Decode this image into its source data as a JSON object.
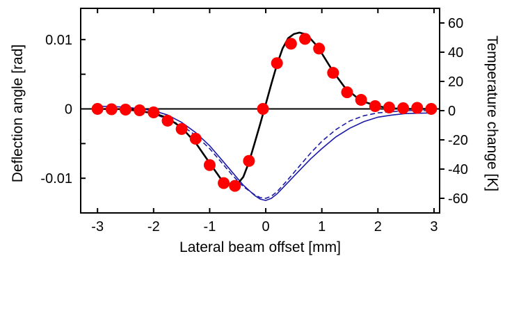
{
  "chart_data": {
    "type": "scatter",
    "title": "",
    "xlabel": "Lateral beam offset [mm]",
    "ylabel_left": "Deflection angle [rad]",
    "ylabel_right": "Temperature change [K]",
    "xlim": [
      -3.3,
      3.1
    ],
    "ylim_left": [
      -0.015,
      0.0145
    ],
    "ylim_right": [
      -70,
      70
    ],
    "x_ticks": [
      -3,
      -2,
      -1,
      0,
      1,
      2,
      3
    ],
    "x_tick_labels": [
      "-3",
      "-2",
      "-1",
      "0",
      "1",
      "2",
      "3"
    ],
    "y_left_ticks": [
      -0.01,
      0,
      0.01
    ],
    "y_left_tick_labels": [
      "-0.01",
      "0",
      "0.01"
    ],
    "y_right_ticks": [
      -60,
      -40,
      -20,
      0,
      20,
      40,
      60
    ],
    "y_right_tick_labels": [
      "-60",
      "-40",
      "-20",
      "0",
      "20",
      "40",
      "60"
    ],
    "grid": false,
    "legend": false,
    "colors": {
      "measured": "#ff0000",
      "fit": "#000000",
      "temperature": "#1a1aa6"
    },
    "series": [
      {
        "style": "red-circles",
        "axis": "left",
        "x": [
          -3.0,
          -2.75,
          -2.5,
          -2.25,
          -2.0,
          -1.75,
          -1.5,
          -1.25,
          -1.0,
          -0.75,
          -0.55,
          -0.3,
          -0.05,
          0.2,
          0.45,
          0.7,
          0.95,
          1.2,
          1.45,
          1.7,
          1.95,
          2.2,
          2.45,
          2.7,
          2.95
        ],
        "y": [
          0.0,
          -5e-05,
          -0.0001,
          -0.0002,
          -0.0005,
          -0.0017,
          -0.0029,
          -0.0043,
          -0.0081,
          -0.0107,
          -0.0111,
          -0.0075,
          0.0,
          0.0066,
          0.0094,
          0.0101,
          0.0087,
          0.0052,
          0.0024,
          0.0013,
          0.0004,
          0.0002,
          0.0001,
          0.00015,
          0.0
        ]
      },
      {
        "style": "black-line",
        "axis": "left",
        "x": [
          -3.0,
          -2.5,
          -2.0,
          -1.75,
          -1.5,
          -1.25,
          -1.0,
          -0.8,
          -0.6,
          -0.5,
          -0.4,
          -0.3,
          -0.2,
          -0.1,
          0.0,
          0.1,
          0.2,
          0.3,
          0.4,
          0.5,
          0.6,
          0.7,
          0.8,
          0.9,
          1.0,
          1.2,
          1.4,
          1.6,
          1.8,
          2.0,
          2.2,
          2.5,
          3.0
        ],
        "y": [
          0.0,
          -5e-05,
          -0.0006,
          -0.0013,
          -0.0027,
          -0.0049,
          -0.0078,
          -0.0101,
          -0.011,
          -0.0108,
          -0.0098,
          -0.0077,
          -0.005,
          -0.0022,
          0.0007,
          0.0036,
          0.0064,
          0.0087,
          0.0102,
          0.0108,
          0.011,
          0.0108,
          0.0101,
          0.0092,
          0.008,
          0.0054,
          0.0032,
          0.0018,
          0.0009,
          0.0004,
          0.0001,
          0.0,
          0.0
        ]
      },
      {
        "style": "blue-solid",
        "axis": "right",
        "x": [
          -3.0,
          -2.5,
          -2.0,
          -1.75,
          -1.5,
          -1.25,
          -1.0,
          -0.8,
          -0.6,
          -0.4,
          -0.2,
          -0.1,
          0.0,
          0.1,
          0.2,
          0.4,
          0.6,
          0.8,
          1.0,
          1.25,
          1.5,
          1.75,
          2.0,
          2.25,
          2.5,
          3.0
        ],
        "y": [
          3.0,
          2.5,
          0.0,
          -3.0,
          -8.0,
          -15.0,
          -24.0,
          -33.0,
          -42.0,
          -51.0,
          -58.0,
          -60.5,
          -61.5,
          -60.0,
          -57.0,
          -49.0,
          -41.0,
          -33.0,
          -26.0,
          -18.0,
          -12.0,
          -7.5,
          -4.5,
          -3.0,
          -2.0,
          -1.5
        ]
      },
      {
        "style": "blue-dashed",
        "axis": "right",
        "x": [
          -3.0,
          -2.5,
          -2.0,
          -1.5,
          -1.25,
          -1.0,
          -0.8,
          -0.6,
          -0.4,
          -0.2,
          -0.1,
          0.0,
          0.1,
          0.2,
          0.4,
          0.6,
          0.8,
          1.0,
          1.25,
          1.5,
          1.75,
          2.0,
          2.5,
          3.0
        ],
        "y": [
          1.5,
          1.0,
          -2.0,
          -10.0,
          -17.0,
          -26.0,
          -35.0,
          -44.0,
          -52.0,
          -57.5,
          -59.5,
          -60.0,
          -58.5,
          -55.5,
          -47.0,
          -38.0,
          -29.0,
          -21.0,
          -13.0,
          -7.0,
          -3.5,
          -1.5,
          0.0,
          0.0
        ]
      }
    ]
  }
}
